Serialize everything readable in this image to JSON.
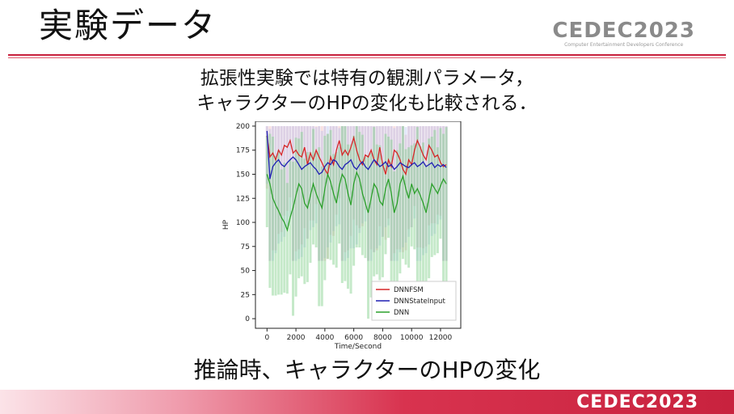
{
  "slide": {
    "title": "実験データ",
    "logo": "CEDEC2023",
    "logo_sub": "Computer Entertainment Developers Conference",
    "description_line1": "拡張性実験では特有の観測パラメータ，",
    "description_line2": "キャラクターのHPの変化も比較される．",
    "caption": "推論時、キャラクターのHPの変化",
    "footer_logo": "CEDEC2023",
    "accent_color": "#c8223e"
  },
  "chart_data": {
    "type": "line",
    "xlabel": "Time/Second",
    "ylabel": "HP",
    "xlim": [
      -800,
      13400
    ],
    "ylim": [
      -10,
      205
    ],
    "xticks": [
      0,
      2000,
      4000,
      6000,
      8000,
      10000,
      12000
    ],
    "yticks": [
      0,
      25,
      50,
      75,
      100,
      125,
      150,
      175,
      200
    ],
    "legend_position": "lower-right",
    "series": [
      {
        "name": "DNNFSM",
        "color": "#d62728",
        "x": [
          0,
          200,
          400,
          600,
          800,
          1000,
          1200,
          1400,
          1600,
          1800,
          2000,
          2200,
          2400,
          2600,
          2800,
          3000,
          3200,
          3400,
          3600,
          3800,
          4000,
          4200,
          4400,
          4600,
          4800,
          5000,
          5200,
          5400,
          5600,
          5800,
          6000,
          6200,
          6400,
          6600,
          6800,
          7000,
          7200,
          7400,
          7600,
          7800,
          8000,
          8200,
          8400,
          8600,
          8800,
          9000,
          9200,
          9400,
          9600,
          9800,
          10000,
          10200,
          10400,
          10600,
          10800,
          11000,
          11200,
          11400,
          11600,
          11800,
          12000,
          12200,
          12400
        ],
        "values": [
          190,
          168,
          172,
          165,
          175,
          170,
          180,
          178,
          185,
          172,
          175,
          170,
          168,
          178,
          160,
          172,
          165,
          175,
          168,
          162,
          155,
          150,
          168,
          160,
          175,
          185,
          170,
          175,
          170,
          178,
          188,
          175,
          165,
          160,
          170,
          168,
          175,
          165,
          160,
          178,
          160,
          150,
          165,
          158,
          175,
          172,
          165,
          155,
          150,
          165,
          160,
          175,
          185,
          178,
          170,
          165,
          180,
          175,
          168,
          170,
          162,
          158,
          160
        ]
      },
      {
        "name": "DNNStateInput",
        "color": "#1f1fb4",
        "x": [
          0,
          200,
          400,
          600,
          800,
          1000,
          1200,
          1400,
          1600,
          1800,
          2000,
          2200,
          2400,
          2600,
          2800,
          3000,
          3200,
          3400,
          3600,
          3800,
          4000,
          4200,
          4400,
          4600,
          4800,
          5000,
          5200,
          5400,
          5600,
          5800,
          6000,
          6200,
          6400,
          6600,
          6800,
          7000,
          7200,
          7400,
          7600,
          7800,
          8000,
          8200,
          8400,
          8600,
          8800,
          9000,
          9200,
          9400,
          9600,
          9800,
          10000,
          10200,
          10400,
          10600,
          10800,
          11000,
          11200,
          11400,
          11600,
          11800,
          12000,
          12200,
          12400
        ],
        "values": [
          195,
          145,
          158,
          162,
          165,
          160,
          158,
          162,
          165,
          168,
          165,
          160,
          155,
          158,
          160,
          162,
          158,
          155,
          150,
          152,
          158,
          162,
          160,
          165,
          163,
          158,
          155,
          160,
          162,
          165,
          158,
          155,
          160,
          163,
          158,
          155,
          160,
          165,
          162,
          158,
          160,
          163,
          158,
          160,
          155,
          158,
          162,
          160,
          158,
          157,
          160,
          162,
          158,
          160,
          163,
          158,
          160,
          162,
          157,
          160,
          158,
          160,
          157
        ]
      },
      {
        "name": "DNN",
        "color": "#2ca02c",
        "x": [
          0,
          200,
          400,
          600,
          800,
          1000,
          1200,
          1400,
          1600,
          1800,
          2000,
          2200,
          2400,
          2600,
          2800,
          3000,
          3200,
          3400,
          3600,
          3800,
          4000,
          4200,
          4400,
          4600,
          4800,
          5000,
          5200,
          5400,
          5600,
          5800,
          6000,
          6200,
          6400,
          6600,
          6800,
          7000,
          7200,
          7400,
          7600,
          7800,
          8000,
          8200,
          8400,
          8600,
          8800,
          9000,
          9200,
          9400,
          9600,
          9800,
          10000,
          10200,
          10400,
          10600,
          10800,
          11000,
          11200,
          11400,
          11600,
          11800,
          12000,
          12200,
          12400
        ],
        "values": [
          150,
          140,
          125,
          118,
          112,
          105,
          100,
          92,
          105,
          115,
          128,
          140,
          135,
          120,
          115,
          128,
          140,
          130,
          122,
          115,
          135,
          150,
          142,
          130,
          120,
          138,
          150,
          145,
          130,
          118,
          140,
          152,
          145,
          130,
          120,
          110,
          125,
          140,
          135,
          122,
          118,
          135,
          145,
          130,
          110,
          120,
          140,
          148,
          135,
          125,
          140,
          130,
          135,
          128,
          120,
          110,
          125,
          140,
          135,
          130,
          138,
          145,
          140
        ]
      }
    ]
  }
}
